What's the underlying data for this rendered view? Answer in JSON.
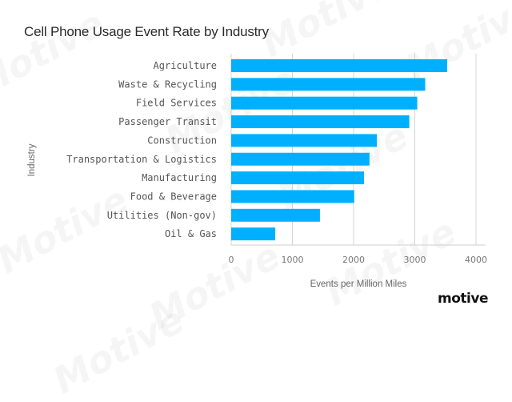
{
  "brand": {
    "logo_text": "motive",
    "watermark_text": "Motive"
  },
  "chart_data": {
    "type": "bar",
    "orientation": "horizontal",
    "title": "Cell Phone Usage Event Rate by Industry",
    "xlabel": "Events per Million Miles",
    "ylabel": "Industry",
    "xlim": [
      0,
      4000
    ],
    "xticks": [
      0,
      1000,
      2000,
      3000,
      4000
    ],
    "xtick_labels": [
      "0",
      "1000",
      "2000",
      "3000",
      "4000"
    ],
    "grid": true,
    "legend": "none",
    "bar_color": "#00b0ff",
    "categories": [
      "Agriculture",
      "Waste & Recycling",
      "Field Services",
      "Passenger Transit",
      "Construction",
      "Transportation & Logistics",
      "Manufacturing",
      "Food & Beverage",
      "Utilities (Non-gov)",
      "Oil & Gas"
    ],
    "values": [
      3530,
      3170,
      3040,
      2910,
      2380,
      2260,
      2170,
      2010,
      1450,
      720
    ]
  }
}
